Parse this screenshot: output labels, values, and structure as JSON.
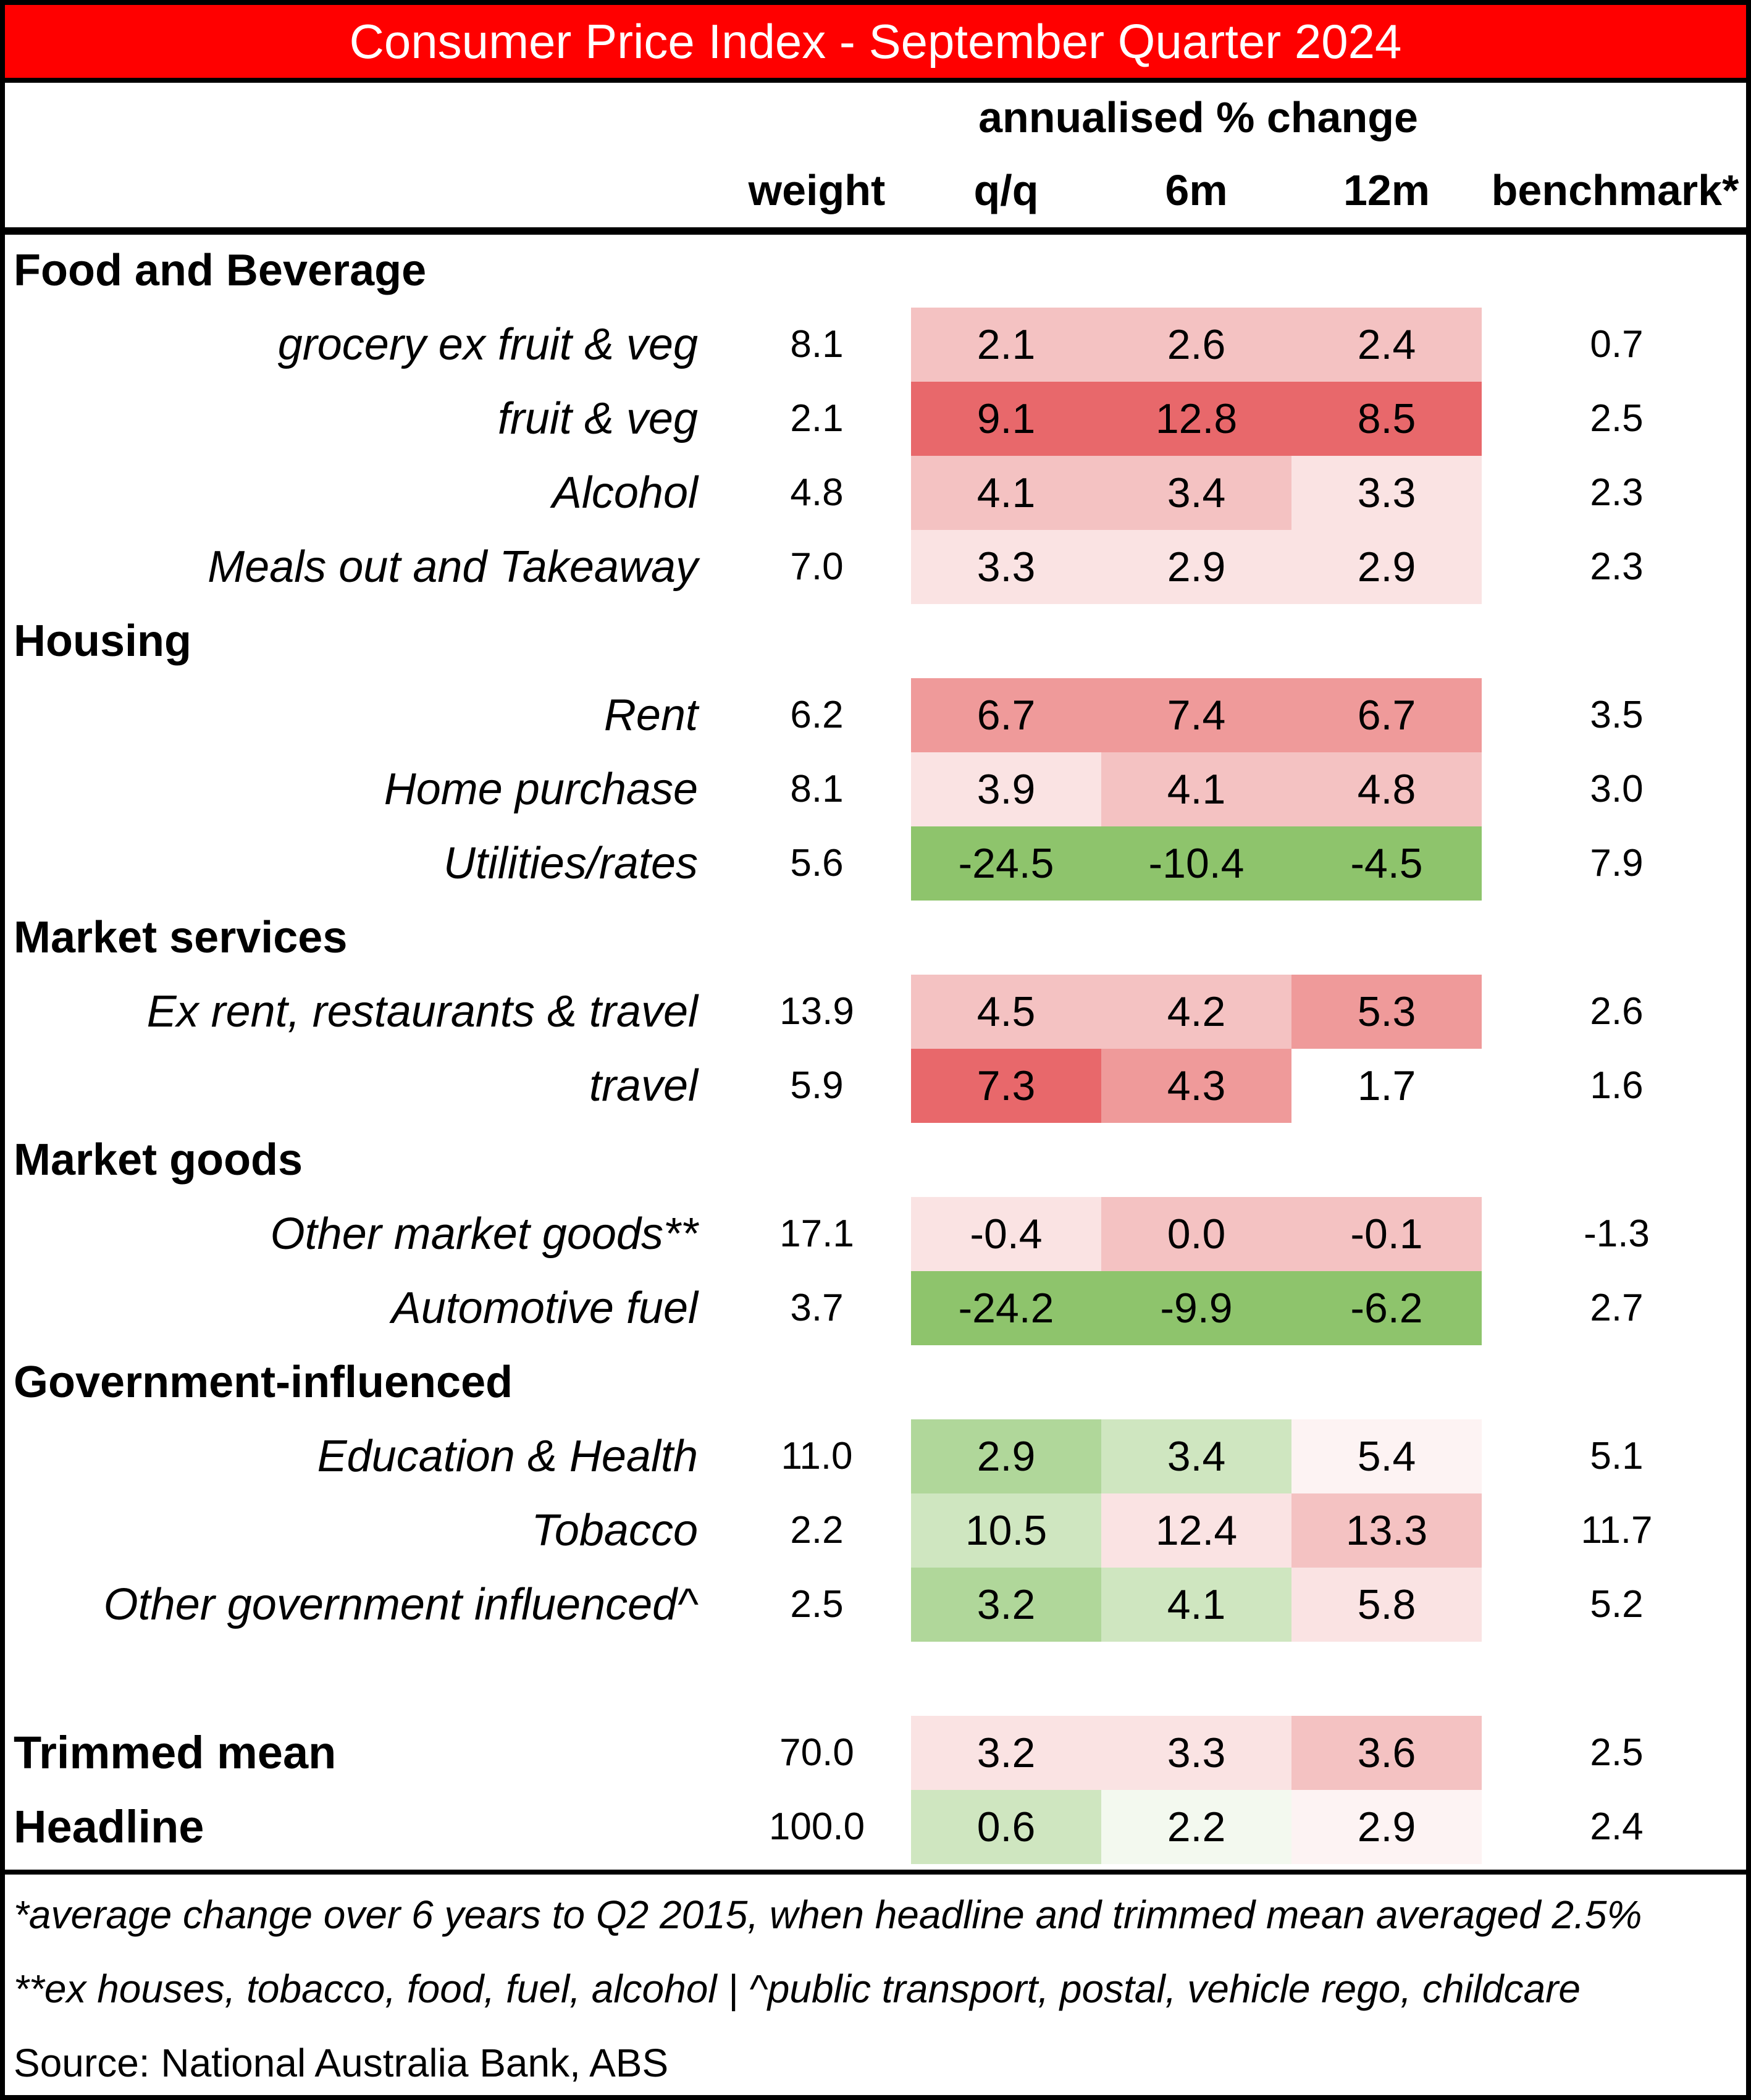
{
  "title": "Consumer Price Index - September Quarter 2024",
  "headers": {
    "group": "annualised % change",
    "weight": "weight",
    "qq": "q/q",
    "six_m": "6m",
    "twelve_m": "12m",
    "benchmark": "benchmark*"
  },
  "chart_data": {
    "type": "table",
    "title": "Consumer Price Index - September Quarter 2024",
    "columns": [
      "weight",
      "q/q",
      "6m",
      "12m",
      "benchmark*"
    ],
    "sections": [
      {
        "name": "Food and Beverage",
        "rows": [
          {
            "label": "grocery ex fruit & veg",
            "weight": "8.1",
            "qq": "2.1",
            "six_m": "2.6",
            "twelve_m": "2.4",
            "benchmark": "0.7"
          },
          {
            "label": "fruit & veg",
            "weight": "2.1",
            "qq": "9.1",
            "six_m": "12.8",
            "twelve_m": "8.5",
            "benchmark": "2.5"
          },
          {
            "label": "Alcohol",
            "weight": "4.8",
            "qq": "4.1",
            "six_m": "3.4",
            "twelve_m": "3.3",
            "benchmark": "2.3"
          },
          {
            "label": "Meals out and Takeaway",
            "weight": "7.0",
            "qq": "3.3",
            "six_m": "2.9",
            "twelve_m": "2.9",
            "benchmark": "2.3"
          }
        ]
      },
      {
        "name": "Housing",
        "rows": [
          {
            "label": "Rent",
            "weight": "6.2",
            "qq": "6.7",
            "six_m": "7.4",
            "twelve_m": "6.7",
            "benchmark": "3.5"
          },
          {
            "label": "Home purchase",
            "weight": "8.1",
            "qq": "3.9",
            "six_m": "4.1",
            "twelve_m": "4.8",
            "benchmark": "3.0"
          },
          {
            "label": "Utilities/rates",
            "weight": "5.6",
            "qq": "-24.5",
            "six_m": "-10.4",
            "twelve_m": "-4.5",
            "benchmark": "7.9"
          }
        ]
      },
      {
        "name": "Market services",
        "rows": [
          {
            "label": "Ex rent, restaurants & travel",
            "weight": "13.9",
            "qq": "4.5",
            "six_m": "4.2",
            "twelve_m": "5.3",
            "benchmark": "2.6"
          },
          {
            "label": "travel",
            "weight": "5.9",
            "qq": "7.3",
            "six_m": "4.3",
            "twelve_m": "1.7",
            "benchmark": "1.6"
          }
        ]
      },
      {
        "name": "Market goods",
        "rows": [
          {
            "label": "Other market goods**",
            "weight": "17.1",
            "qq": "-0.4",
            "six_m": "0.0",
            "twelve_m": "-0.1",
            "benchmark": "-1.3"
          },
          {
            "label": "Automotive fuel",
            "weight": "3.7",
            "qq": "-24.2",
            "six_m": "-9.9",
            "twelve_m": "-6.2",
            "benchmark": "2.7"
          }
        ]
      },
      {
        "name": "Government-influenced",
        "rows": [
          {
            "label": "Education & Health",
            "weight": "11.0",
            "qq": "2.9",
            "six_m": "3.4",
            "twelve_m": "5.4",
            "benchmark": "5.1"
          },
          {
            "label": "Tobacco",
            "weight": "2.2",
            "qq": "10.5",
            "six_m": "12.4",
            "twelve_m": "13.3",
            "benchmark": "11.7"
          },
          {
            "label": "Other government influenced^",
            "weight": "2.5",
            "qq": "3.2",
            "six_m": "4.1",
            "twelve_m": "5.8",
            "benchmark": "5.2"
          }
        ]
      }
    ],
    "totals": [
      {
        "label": "Trimmed mean",
        "weight": "70.0",
        "qq": "3.2",
        "six_m": "3.3",
        "twelve_m": "3.6",
        "benchmark": "2.5"
      },
      {
        "label": "Headline",
        "weight": "100.0",
        "qq": "0.6",
        "six_m": "2.2",
        "twelve_m": "2.9",
        "benchmark": "2.4"
      }
    ],
    "cell_colors": {
      "Food and Beverage": [
        [
          "#f4c2c2",
          "#f4c2c2",
          "#f4c2c2"
        ],
        [
          "#e8686b",
          "#e8686b",
          "#e8686b"
        ],
        [
          "#f4c2c2",
          "#f4c2c2",
          "#fae3e3"
        ],
        [
          "#fae3e3",
          "#fae3e3",
          "#fae3e3"
        ]
      ],
      "Housing": [
        [
          "#ef9a9a",
          "#ef9a9a",
          "#ef9a9a"
        ],
        [
          "#fae3e3",
          "#f4c2c2",
          "#f4c2c2"
        ],
        [
          "#8ec46c",
          "#8ec46c",
          "#8ec46c"
        ]
      ],
      "Market services": [
        [
          "#f4c2c2",
          "#f4c2c2",
          "#ef9a9a"
        ],
        [
          "#e8686b",
          "#ef9a9a",
          "#ffffff"
        ]
      ],
      "Market goods": [
        [
          "#fae3e3",
          "#f4c2c2",
          "#f4c2c2"
        ],
        [
          "#8ec46c",
          "#8ec46c",
          "#8ec46c"
        ]
      ],
      "Government-influenced": [
        [
          "#b0d79a",
          "#cfe6c0",
          "#fdf3f3"
        ],
        [
          "#cfe6c0",
          "#fae3e3",
          "#f4c2c2"
        ],
        [
          "#b0d79a",
          "#cfe6c0",
          "#fae3e3"
        ]
      ],
      "totals": [
        [
          "#fae3e3",
          "#fae3e3",
          "#f4c2c2"
        ],
        [
          "#cfe6c0",
          "#f3f9ef",
          "#fdf3f3"
        ]
      ]
    },
    "colors": {
      "title_bar": "#ff0000",
      "title_text": "#ffffff"
    }
  },
  "footnotes": [
    "*average change over 6 years to Q2 2015, when headline and trimmed mean averaged 2.5%",
    "**ex houses, tobacco, food, fuel, alcohol | ^public transport, postal, vehicle rego, childcare",
    "Source: National Australia Bank, ABS"
  ]
}
